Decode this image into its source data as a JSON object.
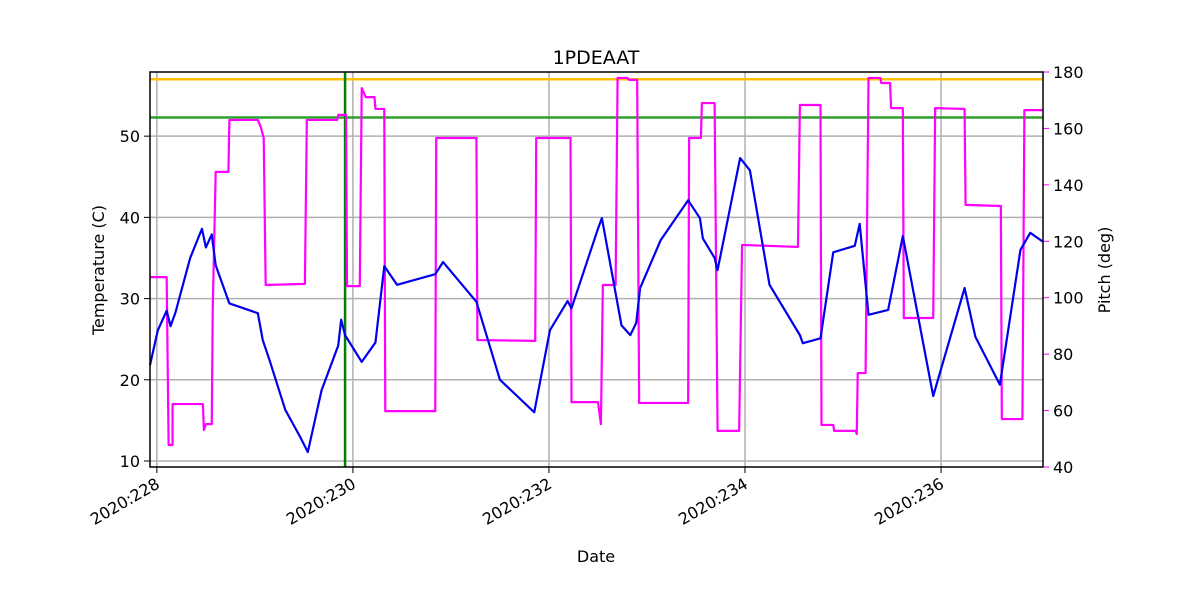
{
  "chart_data": {
    "type": "line",
    "title": "1PDEAAT",
    "xlabel": "Date",
    "ylabel": "Temperature (C)",
    "y2label": "Pitch (deg)",
    "y2color": "#ff00ff",
    "grid": true,
    "xlim": [
      227.93,
      237.04
    ],
    "xticks": [
      {
        "value": 228,
        "label": "2020:228"
      },
      {
        "value": 230,
        "label": "2020:230"
      },
      {
        "value": 232,
        "label": "2020:232"
      },
      {
        "value": 234,
        "label": "2020:234"
      },
      {
        "value": 236,
        "label": "2020:236"
      }
    ],
    "ylim": [
      9.26,
      57.9
    ],
    "yticks": [
      10,
      20,
      30,
      40,
      50
    ],
    "y2lim": [
      40,
      180
    ],
    "y2ticks": [
      40,
      60,
      80,
      100,
      120,
      140,
      160,
      180
    ],
    "hlines": [
      {
        "value": 57.0,
        "color": "#ffc000"
      },
      {
        "value": 52.3,
        "color": "#2ca02c"
      }
    ],
    "vlines": [
      {
        "value": 229.92,
        "color": "#008000"
      }
    ],
    "series": [
      {
        "name": "Temperature",
        "color": "#0000ee",
        "axis": "y",
        "x": [
          227.93,
          228.01,
          228.1,
          228.14,
          228.19,
          228.34,
          228.46,
          228.5,
          228.56,
          228.6,
          228.74,
          229.03,
          229.08,
          229.15,
          229.31,
          229.46,
          229.54,
          229.68,
          229.85,
          229.88,
          229.92,
          230.09,
          230.23,
          230.32,
          230.45,
          230.84,
          230.92,
          231.26,
          231.5,
          231.85,
          232.01,
          232.19,
          232.23,
          232.5,
          232.54,
          232.74,
          232.83,
          232.89,
          232.93,
          233.14,
          233.42,
          233.54,
          233.57,
          233.69,
          233.72,
          233.95,
          234.05,
          234.25,
          234.56,
          234.59,
          234.77,
          234.9,
          235.12,
          235.17,
          235.26,
          235.46,
          235.61,
          235.92,
          236.24,
          236.35,
          236.6,
          236.81,
          236.91,
          237.04
        ],
        "values": [
          21.8,
          26.1,
          28.5,
          26.6,
          28.3,
          35.0,
          38.6,
          36.3,
          37.9,
          34.1,
          29.4,
          28.2,
          24.9,
          22.4,
          16.3,
          13.0,
          11.1,
          18.7,
          24.2,
          27.4,
          25.5,
          22.2,
          24.6,
          34.0,
          31.7,
          33.0,
          34.5,
          29.6,
          20.0,
          16.0,
          26.1,
          29.7,
          28.8,
          38.6,
          39.9,
          26.7,
          25.5,
          27.0,
          31.3,
          37.2,
          42.1,
          39.9,
          37.4,
          35.0,
          33.5,
          47.3,
          45.8,
          31.7,
          25.5,
          24.5,
          25.1,
          35.7,
          36.5,
          39.2,
          28.0,
          28.6,
          37.7,
          18.0,
          31.3,
          25.3,
          19.4,
          36.0,
          38.1,
          37.0
        ]
      },
      {
        "name": "Pitch",
        "color": "#ff00ff",
        "axis": "y2",
        "x": [
          227.93,
          228.1,
          228.12,
          228.16,
          228.16,
          228.47,
          228.48,
          228.5,
          228.56,
          228.57,
          228.6,
          228.73,
          228.74,
          229.03,
          229.06,
          229.09,
          229.11,
          229.51,
          229.53,
          229.84,
          229.85,
          229.93,
          229.94,
          230.07,
          230.09,
          230.13,
          230.22,
          230.23,
          230.32,
          230.33,
          230.84,
          230.85,
          231.26,
          231.27,
          231.86,
          231.87,
          232.22,
          232.23,
          232.5,
          232.53,
          232.55,
          232.68,
          232.7,
          232.8,
          232.82,
          232.9,
          232.92,
          233.42,
          233.43,
          233.55,
          233.56,
          233.69,
          233.72,
          233.94,
          233.97,
          234.54,
          234.56,
          234.77,
          234.78,
          234.9,
          234.91,
          235.13,
          235.14,
          235.15,
          235.23,
          235.26,
          235.38,
          235.39,
          235.48,
          235.49,
          235.61,
          235.62,
          235.92,
          235.94,
          236.24,
          236.25,
          236.61,
          236.62,
          236.83,
          236.85,
          237.04
        ],
        "values": [
          107.3,
          107.3,
          47.8,
          47.8,
          62.3,
          62.3,
          53.1,
          55.2,
          55.2,
          96.0,
          144.6,
          144.6,
          163.0,
          163.0,
          160.5,
          156.6,
          104.5,
          104.9,
          163.0,
          163.0,
          164.8,
          164.8,
          104.1,
          104.1,
          174.3,
          171.1,
          171.1,
          166.9,
          166.9,
          59.8,
          59.8,
          156.6,
          156.6,
          85.0,
          84.7,
          156.6,
          156.6,
          63.0,
          63.0,
          55.2,
          104.5,
          104.5,
          177.9,
          177.9,
          177.2,
          177.2,
          62.7,
          62.7,
          156.6,
          156.6,
          169.0,
          169.0,
          52.8,
          52.8,
          118.7,
          118.0,
          168.3,
          168.3,
          54.9,
          54.9,
          52.8,
          52.8,
          51.7,
          73.3,
          73.3,
          177.9,
          177.9,
          176.1,
          176.1,
          167.2,
          167.2,
          92.8,
          92.8,
          167.2,
          166.9,
          132.9,
          132.5,
          57.0,
          57.0,
          166.5,
          166.5
        ]
      }
    ]
  }
}
